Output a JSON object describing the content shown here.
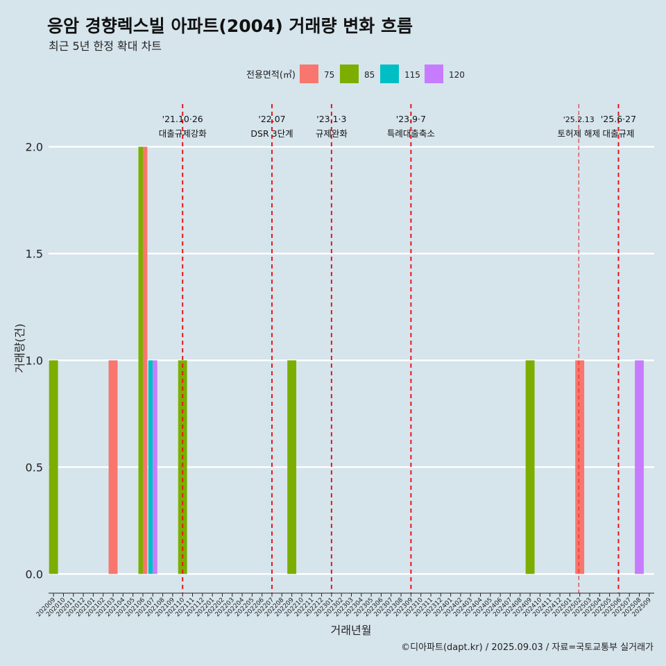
{
  "chart_data": {
    "type": "bar",
    "title": "응암 경향렉스빌 아파트(2004) 거래량 변화 흐름",
    "subtitle": "최근 5년 한정 확대 차트",
    "xlabel": "거래년월",
    "ylabel": "거래량(건)",
    "ylim": [
      -0.09,
      2.2
    ],
    "yticks": [
      0.0,
      0.5,
      1.0,
      1.5,
      2.0
    ],
    "ytick_labels": [
      "0.0",
      "0.5",
      "1.0",
      "1.5",
      "2.0"
    ],
    "legend": {
      "title": "전용면적(㎡)",
      "position": "top",
      "entries": [
        {
          "name": "75",
          "color": "#F8766D"
        },
        {
          "name": "85",
          "color": "#7CAE00"
        },
        {
          "name": "115",
          "color": "#00BFC4"
        },
        {
          "name": "120",
          "color": "#C77CFF"
        }
      ]
    },
    "categories": [
      "202009",
      "202010",
      "202011",
      "202012",
      "202101",
      "202102",
      "202103",
      "202104",
      "202105",
      "202106",
      "202107",
      "202108",
      "202109",
      "202110",
      "202111",
      "202112",
      "202201",
      "202202",
      "202203",
      "202204",
      "202205",
      "202206",
      "202207",
      "202208",
      "202209",
      "202210",
      "202211",
      "202212",
      "202301",
      "202302",
      "202303",
      "202304",
      "202305",
      "202306",
      "202307",
      "202308",
      "202309",
      "202310",
      "202311",
      "202312",
      "202401",
      "202402",
      "202403",
      "202404",
      "202405",
      "202406",
      "202407",
      "202408",
      "202409",
      "202410",
      "202411",
      "202412",
      "202501",
      "202502",
      "202503",
      "202504",
      "202505",
      "202506",
      "202507",
      "202508",
      "202509"
    ],
    "bars": [
      {
        "x": "202009",
        "series": "85",
        "value": 1
      },
      {
        "x": "202103",
        "series": "75",
        "value": 1
      },
      {
        "x": "202106",
        "series": "85",
        "value": 2
      },
      {
        "x": "202106",
        "series": "75",
        "value": 2
      },
      {
        "x": "202107",
        "series": "115",
        "value": 1
      },
      {
        "x": "202107",
        "series": "120",
        "value": 1
      },
      {
        "x": "202110",
        "series": "85",
        "value": 1
      },
      {
        "x": "202209",
        "series": "85",
        "value": 1
      },
      {
        "x": "202409",
        "series": "85",
        "value": 1
      },
      {
        "x": "202502",
        "series": "75",
        "value": 1
      },
      {
        "x": "202508",
        "series": "120",
        "value": 1
      }
    ],
    "events": [
      {
        "date": "'21.10·26",
        "label": "대출규제강화",
        "x": 13.5
      },
      {
        "date": "'22.07",
        "label": "DSR 3단계",
        "x": 22.5
      },
      {
        "date": "'23.1·3",
        "label": "규제완화",
        "x": 28.5
      },
      {
        "date": "'23.9·7",
        "label": "특례대출축소",
        "x": 36.5
      },
      {
        "date": "'25.2.13",
        "label": "토허제 해제",
        "x": 53.4,
        "thin": true
      },
      {
        "date": "'25.6·27",
        "label": "대출규제",
        "x": 57.4
      }
    ]
  },
  "caption": "©디아파트(dapt.kr) / 2025.09.03 / 자료=국토교통부 실거래가"
}
